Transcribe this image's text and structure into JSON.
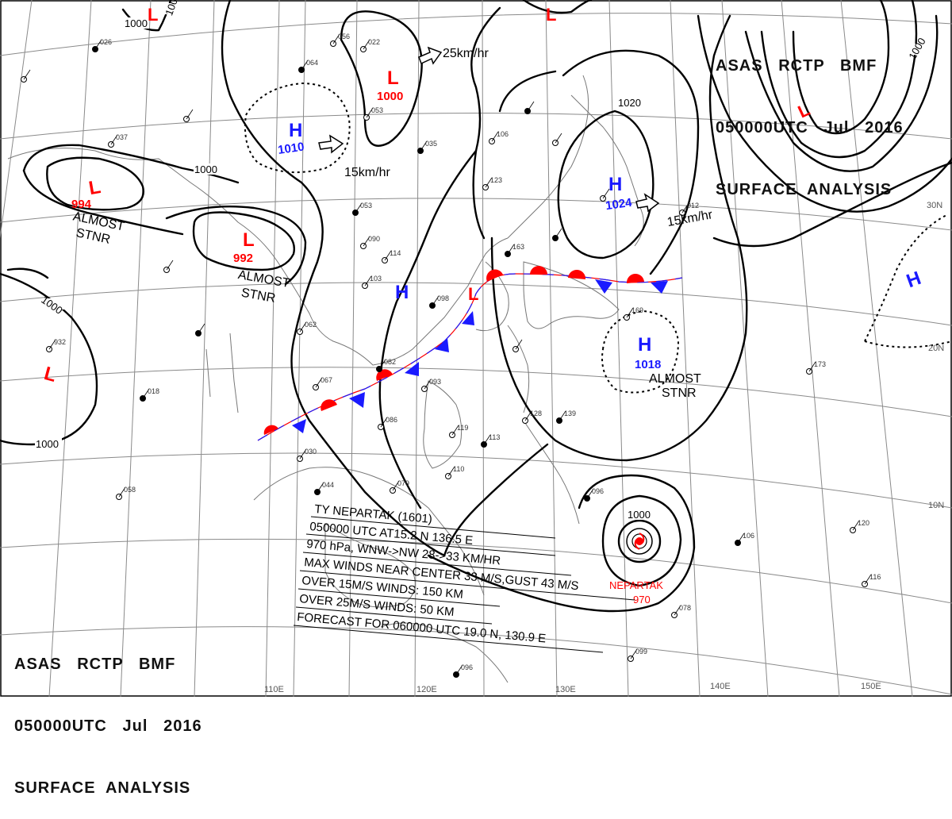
{
  "header_top": {
    "line1": "ASAS   RCTP   BMF",
    "line2": "050000UTC   Jul   2016",
    "line3": "SURFACE  ANALYSIS"
  },
  "header_bottom": {
    "line1": "ASAS   RCTP   BMF",
    "line2": "050000UTC   Jul   2016",
    "line3": "SURFACE  ANALYSIS"
  },
  "colors": {
    "high": "#1a1aff",
    "low": "#ff0000",
    "line": "#000000",
    "grid": "#888888"
  },
  "longitudes": [
    "110E",
    "120E",
    "130E",
    "140E",
    "150E"
  ],
  "latitudes": [
    "30N",
    "20N",
    "10N"
  ],
  "isobar_labels": [
    "1000",
    "1000",
    "1000",
    "1000",
    "1000",
    "1000",
    "1020",
    "1000"
  ],
  "pressure_centers": [
    {
      "type": "L",
      "value": "994"
    },
    {
      "type": "L",
      "value": "992"
    },
    {
      "type": "L",
      "value": "1000"
    },
    {
      "type": "H",
      "value": "1010"
    },
    {
      "type": "H",
      "value": "1024"
    },
    {
      "type": "H",
      "value": "1018"
    },
    {
      "type": "H",
      "value": ""
    },
    {
      "type": "H",
      "value": ""
    },
    {
      "type": "L",
      "value": ""
    },
    {
      "type": "L",
      "value": ""
    },
    {
      "type": "L",
      "value": ""
    },
    {
      "type": "L",
      "value": ""
    },
    {
      "type": "L",
      "value": ""
    }
  ],
  "motion_labels": [
    "25km/hr",
    "15km/hr",
    "15km/hr"
  ],
  "stationary_labels": [
    {
      "line1": "ALMOST",
      "line2": "STNR"
    },
    {
      "line1": "ALMOST",
      "line2": "STNR"
    },
    {
      "line1": "ALMOST",
      "line2": "STNR"
    }
  ],
  "typhoon": {
    "name": "NEPARTAK",
    "pressure": "970",
    "isobar": "1000",
    "lines": [
      "TY  NEPARTAK  (1601)",
      "050000 UTC  AT15.2 N  136.5 E",
      "970 hPa, WNW->NW 28->33 KM/HR",
      "MAX WINDS NEAR CENTER 33 M/S,GUST 43 M/S",
      "OVER 15M/S WINDS: 150 KM",
      "OVER 25M/S WINDS: 50 KM",
      "FORECAST FOR 060000 UTC  19.0 N,  130.9 E"
    ]
  },
  "station_labels": [
    "026",
    "037",
    "056",
    "064",
    "022",
    "053",
    "035",
    "106",
    "123",
    "163",
    "114",
    "090",
    "053",
    "062",
    "103",
    "098",
    "067",
    "093",
    "082",
    "086",
    "119",
    "113",
    "110",
    "079",
    "044",
    "030",
    "058",
    "018",
    "932",
    "099",
    "096",
    "116",
    "120",
    "106",
    "173",
    "169",
    "139",
    "128",
    "012",
    "096",
    "078"
  ]
}
